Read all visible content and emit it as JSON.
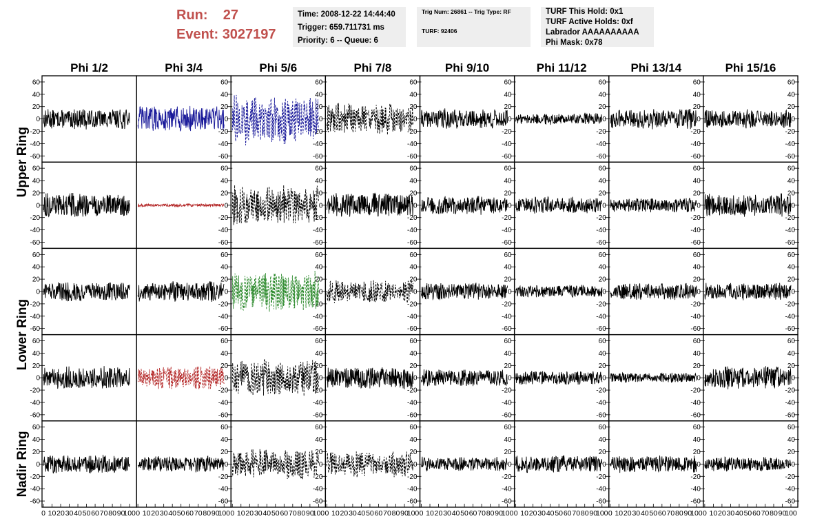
{
  "header": {
    "run_label": "Run:",
    "run_value": "27",
    "event_label": "Event:",
    "event_value": "3027197",
    "time": "Time: 2008-12-22 14:44:40",
    "trigger": "Trigger: 659.711731 ms",
    "priority_queue": "Priority: 6 -- Queue: 6",
    "trig_num_type": "Trig Num: 26861 -- Trig Type: RF",
    "turf": "TURF: 92406",
    "turf_this_hold": "TURF This Hold: 0x1",
    "turf_active_holds": "TURF Active Holds: 0xf",
    "labrador": "Labrador AAAAAAAAAA",
    "phi_mask": "Phi Mask: 0x78"
  },
  "columns": [
    "Phi 1/2",
    "Phi 3/4",
    "Phi 5/6",
    "Phi 7/8",
    "Phi 9/10",
    "Phi 11/12",
    "Phi 13/14",
    "Phi 15/16"
  ],
  "ring_labels": [
    "Upper Ring",
    "Lower Ring",
    "Nadir Ring"
  ],
  "colors": {
    "title_red": "#c0504d",
    "info_bg": "#eeeeee",
    "trace_black": "#000000",
    "trace_blue": "#1a1a9a",
    "trace_red": "#b22222",
    "trace_green": "#2e8b2e"
  },
  "chart_data": {
    "type": "line",
    "x_range": [
      0,
      100
    ],
    "x_ticks": [
      "0",
      "10",
      "20",
      "30",
      "40",
      "50",
      "60",
      "70",
      "80",
      "90",
      "100"
    ],
    "y_range": [
      -70,
      70
    ],
    "y_ticks": [
      "60",
      "40",
      "20",
      "0",
      "-20",
      "-40",
      "-60"
    ],
    "grid": false,
    "panels": [
      [
        {
          "color": "black",
          "style": "solid",
          "amp": 14
        },
        {
          "color": "blue",
          "style": "solid",
          "amp": 18
        },
        {
          "color": "blue",
          "style": "dashed",
          "amp": 35
        },
        {
          "color": "black",
          "style": "dashed",
          "amp": 22
        },
        {
          "color": "black",
          "style": "solid",
          "amp": 14
        },
        {
          "color": "black",
          "style": "solid",
          "amp": 8
        },
        {
          "color": "black",
          "style": "solid",
          "amp": 14
        },
        {
          "color": "black",
          "style": "solid",
          "amp": 13
        }
      ],
      [
        {
          "color": "black",
          "style": "solid",
          "amp": 17
        },
        {
          "color": "red",
          "style": "solid",
          "amp": 2
        },
        {
          "color": "black",
          "style": "dashed",
          "amp": 28
        },
        {
          "color": "black",
          "style": "solid",
          "amp": 17
        },
        {
          "color": "black",
          "style": "solid",
          "amp": 13
        },
        {
          "color": "black",
          "style": "solid",
          "amp": 12
        },
        {
          "color": "black",
          "style": "solid",
          "amp": 10
        },
        {
          "color": "black",
          "style": "solid",
          "amp": 16
        }
      ],
      [
        {
          "color": "black",
          "style": "solid",
          "amp": 14
        },
        {
          "color": "black",
          "style": "solid",
          "amp": 14
        },
        {
          "color": "green",
          "style": "dashed",
          "amp": 28
        },
        {
          "color": "black",
          "style": "dashed",
          "amp": 16
        },
        {
          "color": "black",
          "style": "solid",
          "amp": 12
        },
        {
          "color": "black",
          "style": "solid",
          "amp": 9
        },
        {
          "color": "black",
          "style": "solid",
          "amp": 12
        },
        {
          "color": "black",
          "style": "solid",
          "amp": 12
        }
      ],
      [
        {
          "color": "black",
          "style": "solid",
          "amp": 16
        },
        {
          "color": "red",
          "style": "dashed",
          "amp": 16
        },
        {
          "color": "black",
          "style": "dashed",
          "amp": 26
        },
        {
          "color": "black",
          "style": "solid",
          "amp": 16
        },
        {
          "color": "black",
          "style": "solid",
          "amp": 12
        },
        {
          "color": "black",
          "style": "solid",
          "amp": 10
        },
        {
          "color": "black",
          "style": "solid",
          "amp": 7
        },
        {
          "color": "black",
          "style": "solid",
          "amp": 16
        }
      ],
      [
        {
          "color": "black",
          "style": "solid",
          "amp": 13
        },
        {
          "color": "black",
          "style": "solid",
          "amp": 11
        },
        {
          "color": "black",
          "style": "dashed",
          "amp": 22
        },
        {
          "color": "black",
          "style": "dashed",
          "amp": 18
        },
        {
          "color": "black",
          "style": "solid",
          "amp": 10
        },
        {
          "color": "black",
          "style": "solid",
          "amp": 12
        },
        {
          "color": "black",
          "style": "solid",
          "amp": 12
        },
        {
          "color": "black",
          "style": "solid",
          "amp": 10
        }
      ]
    ]
  }
}
